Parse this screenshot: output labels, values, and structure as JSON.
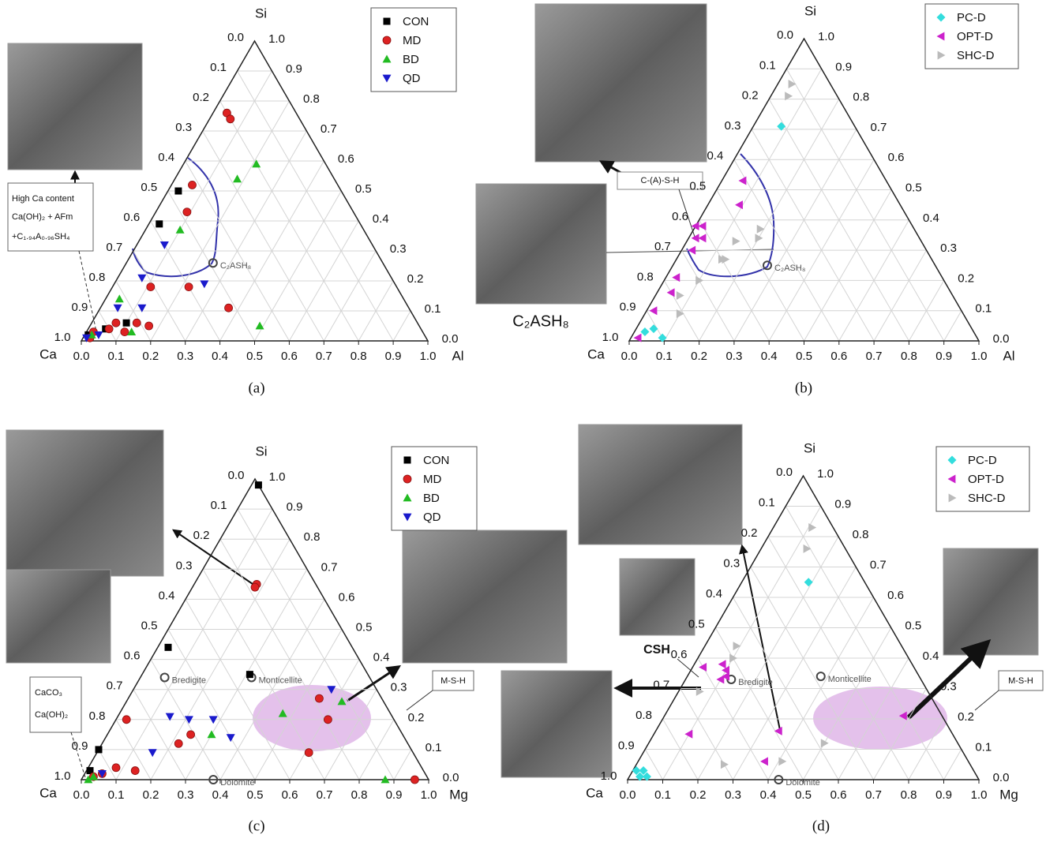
{
  "chart_data": [
    {
      "type": "ternary",
      "caption": "(a)",
      "corners": [
        "Ca",
        "Al",
        "Si"
      ],
      "grid": true,
      "ticks": [
        {
          "value": 0,
          "label": "0.0"
        },
        0.1,
        0.2,
        0.3,
        0.4,
        0.5,
        0.6,
        0.7,
        0.8,
        0.9,
        {
          "value": 1,
          "label": "1.0"
        }
      ],
      "series": [
        {
          "name": "CON",
          "color": "#000000",
          "marker": "square",
          "values": [
            0.5,
            0.39,
            0.06,
            0.04,
            0.02
          ],
          "x": [
            0.03,
            0.03,
            0.1,
            0.05,
            0.01
          ]
        },
        {
          "name": "MD",
          "color": "#dd2222",
          "marker": "circle",
          "values": [
            0.76,
            0.74,
            0.52,
            0.43,
            0.18,
            0.18,
            0.11,
            0.06,
            0.04,
            0.06,
            0.05,
            0.03,
            0.01,
            0.03
          ],
          "x": [
            0.04,
            0.06,
            0.06,
            0.09,
            0.22,
            0.11,
            0.37,
            0.07,
            0.06,
            0.13,
            0.17,
            0.11,
            0.02,
            0.02
          ]
        },
        {
          "name": "BD",
          "color": "#22bb22",
          "marker": "triangle-up",
          "values": [
            0.59,
            0.54,
            0.37,
            0.14,
            0.05,
            0.03,
            0.02
          ],
          "x": [
            0.21,
            0.18,
            0.1,
            0.04,
            0.49,
            0.13,
            0.02
          ]
        },
        {
          "name": "QD",
          "color": "#1a1acc",
          "marker": "triangle-down",
          "values": [
            0.32,
            0.21,
            0.19,
            0.11,
            0.11,
            0.01,
            0.02
          ],
          "x": [
            0.08,
            0.07,
            0.26,
            0.12,
            0.05,
            0.01,
            0.04
          ]
        }
      ],
      "annotations": [
        {
          "text": "C₂ASH₈",
          "value": 0.26,
          "x": 0.25
        }
      ],
      "callouts": [
        "High Ca content",
        "Ca(OH)₂ + AFm",
        "+C₁.₉₄A₀.₉₆SH₄"
      ]
    },
    {
      "type": "ternary",
      "caption": "(b)",
      "corners": [
        "Ca",
        "Al",
        "Si"
      ],
      "grid": true,
      "ticks": [
        {
          "value": 0,
          "label": "0.0"
        },
        0.1,
        0.2,
        0.3,
        0.4,
        0.5,
        0.6,
        0.7,
        0.8,
        0.9,
        {
          "value": 1,
          "label": "1.0"
        }
      ],
      "series": [
        {
          "name": "PC-D",
          "color": "#33dddd",
          "marker": "diamond",
          "values": [
            0.71,
            0.03,
            0.04,
            0.01
          ],
          "x": [
            0.08,
            0.03,
            0.05,
            0.09
          ]
        },
        {
          "name": "OPT-D",
          "color": "#cc22cc",
          "marker": "triangle-left",
          "values": [
            0.53,
            0.45,
            0.38,
            0.38,
            0.34,
            0.34,
            0.3,
            0.21,
            0.16,
            0.1,
            0.01
          ],
          "x": [
            0.06,
            0.09,
            0.0,
            0.02,
            0.02,
            0.04,
            0.03,
            0.03,
            0.04,
            0.02,
            0.02
          ]
        },
        {
          "name": "SHC-D",
          "color": "#bbbbbb",
          "marker": "triangle-right",
          "values": [
            0.85,
            0.81,
            0.37,
            0.34,
            0.33,
            0.27,
            0.27,
            0.2,
            0.15,
            0.09
          ],
          "x": [
            0.04,
            0.05,
            0.19,
            0.2,
            0.14,
            0.13,
            0.14,
            0.1,
            0.07,
            0.1
          ]
        }
      ],
      "annotations": [
        {
          "text": "C₂ASH₈",
          "value": 0.25,
          "x": 0.27
        }
      ],
      "callouts": [
        "C-(A)-S-H",
        "C₂ASH₈"
      ]
    },
    {
      "type": "ternary",
      "caption": "(c)",
      "corners": [
        "Ca",
        "Mg",
        "Si"
      ],
      "grid": true,
      "ticks": [
        {
          "value": 0,
          "label": "0.0"
        },
        0.1,
        0.2,
        0.3,
        0.4,
        0.5,
        0.6,
        0.7,
        0.8,
        0.9,
        {
          "value": 1,
          "label": "1.0"
        }
      ],
      "series": [
        {
          "name": "CON",
          "color": "#000000",
          "marker": "square",
          "values": [
            0.98,
            0.35,
            0.44,
            0.1,
            0.03
          ],
          "x": [
            0.02,
            0.31,
            0.03,
            0.0,
            0.01
          ]
        },
        {
          "name": "MD",
          "color": "#dd2222",
          "marker": "circle",
          "values": [
            0.65,
            0.64,
            0.27,
            0.2,
            0.09,
            0.0,
            0.2,
            0.15,
            0.12,
            0.03,
            0.04,
            0.02,
            0.01
          ],
          "x": [
            0.18,
            0.18,
            0.55,
            0.61,
            0.61,
            0.96,
            0.03,
            0.24,
            0.22,
            0.14,
            0.08,
            0.05,
            0.03
          ]
        },
        {
          "name": "BD",
          "color": "#22bb22",
          "marker": "triangle-up",
          "values": [
            0.26,
            0.22,
            0.15,
            0.0,
            0.01,
            0.0
          ],
          "x": [
            0.62,
            0.47,
            0.3,
            0.875,
            0.03,
            0.02
          ]
        },
        {
          "name": "QD",
          "color": "#1a1acc",
          "marker": "triangle-down",
          "values": [
            0.3,
            0.2,
            0.2,
            0.21,
            0.14,
            0.09,
            0.02
          ],
          "x": [
            0.57,
            0.28,
            0.21,
            0.15,
            0.36,
            0.16,
            0.05
          ]
        }
      ],
      "annotations": [
        {
          "text": "Bredigite",
          "value": 0.34,
          "x": 0.07
        },
        {
          "text": "Monticellite",
          "value": 0.34,
          "x": 0.32
        },
        {
          "text": "Dolomite",
          "value": 0,
          "x": 0.38
        }
      ],
      "callouts": [
        "CaCO₃",
        "Ca(OH)₂",
        "M-S-H"
      ]
    },
    {
      "type": "ternary",
      "caption": "(d)",
      "corners": [
        "Ca",
        "Mg",
        "Si"
      ],
      "grid": true,
      "ticks": [
        {
          "value": 0,
          "label": "0.0"
        },
        0.1,
        0.2,
        0.3,
        0.4,
        0.5,
        0.6,
        0.7,
        0.8,
        0.9,
        {
          "value": 1,
          "label": "1.0"
        }
      ],
      "series": [
        {
          "name": "PC-D",
          "color": "#33dddd",
          "marker": "diamond",
          "values": [
            0.65,
            0.03,
            0.03,
            0.01,
            0.01
          ],
          "x": [
            0.19,
            0.01,
            0.03,
            0.05,
            0.03
          ]
        },
        {
          "name": "OPT-D",
          "color": "#cc22cc",
          "marker": "triangle-left",
          "values": [
            0.38,
            0.34,
            0.33,
            0.36,
            0.16,
            0.21,
            0.15,
            0.06,
            0.37
          ],
          "x": [
            0.08,
            0.11,
            0.1,
            0.1,
            0.35,
            0.68,
            0.1,
            0.36,
            0.03
          ]
        },
        {
          "name": "SHC-D",
          "color": "#bbbbbb",
          "marker": "triangle-right",
          "values": [
            0.83,
            0.76,
            0.44,
            0.4,
            0.29,
            0.12,
            0.06,
            0.05
          ],
          "x": [
            0.11,
            0.13,
            0.09,
            0.1,
            0.06,
            0.5,
            0.41,
            0.25
          ]
        }
      ],
      "annotations": [
        {
          "text": "Bredigite",
          "value": 0.33,
          "x": 0.13
        },
        {
          "text": "Monticellite",
          "value": 0.34,
          "x": 0.38
        },
        {
          "text": "Dolomite",
          "value": 0,
          "x": 0.43
        }
      ],
      "callouts": [
        "CSH",
        "M-S-H"
      ]
    }
  ]
}
